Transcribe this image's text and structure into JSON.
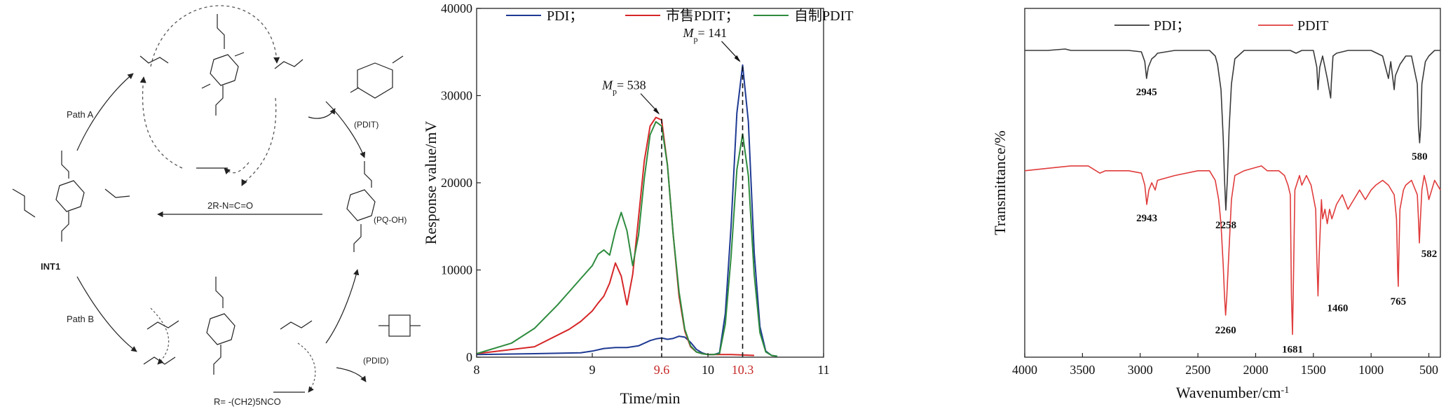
{
  "scheme": {
    "labels": {
      "path_a": "Path A",
      "path_b": "Path B",
      "reagent": "2R-N=C=O",
      "int1": "INT1",
      "pq_oh": "(PQ-OH)",
      "pdit": "(PDIT)",
      "pdid": "(PDID)",
      "r_def": "R= -(CH2)5NCO"
    }
  },
  "chart_data": [
    {
      "type": "line",
      "xlabel": "Time/min",
      "ylabel": "Response value/mV",
      "xlim": [
        8,
        11
      ],
      "ylim": [
        0,
        40000
      ],
      "x_ticks": [
        "8",
        "9",
        "9.6",
        "10",
        "10.3",
        "11"
      ],
      "highlight_ticks": [
        "9.6",
        "10.3"
      ],
      "y_ticks": [
        "0",
        "10000",
        "20000",
        "30000",
        "40000"
      ],
      "legend_placement": "top",
      "series": [
        {
          "name": "PDI；",
          "color": "#1f3a93",
          "x": [
            8.0,
            8.5,
            8.9,
            9.0,
            9.1,
            9.2,
            9.3,
            9.4,
            9.5,
            9.55,
            9.6,
            9.65,
            9.7,
            9.75,
            9.8,
            9.85,
            9.9,
            9.95,
            10.0,
            10.05,
            10.1,
            10.15,
            10.2,
            10.25,
            10.3,
            10.35,
            10.4,
            10.45,
            10.5,
            10.55,
            10.6
          ],
          "values": [
            300,
            400,
            500,
            700,
            1000,
            1100,
            1100,
            1300,
            1900,
            2100,
            2200,
            2050,
            2150,
            2400,
            2300,
            1700,
            900,
            500,
            300,
            300,
            500,
            5000,
            15000,
            28000,
            33500,
            27000,
            12000,
            3500,
            700,
            200,
            100
          ]
        },
        {
          "name": "市售PDIT；",
          "color": "#d62728",
          "x": [
            8.0,
            8.5,
            8.8,
            8.9,
            9.0,
            9.05,
            9.1,
            9.15,
            9.2,
            9.25,
            9.3,
            9.35,
            9.4,
            9.45,
            9.5,
            9.55,
            9.6,
            9.65,
            9.7,
            9.75,
            9.8,
            9.85,
            9.9,
            9.95,
            10.0,
            10.2,
            10.4
          ],
          "values": [
            400,
            1200,
            3200,
            4100,
            5300,
            6200,
            7000,
            8500,
            10800,
            9300,
            6000,
            9500,
            16000,
            22500,
            26500,
            27500,
            27200,
            22000,
            14000,
            7000,
            3000,
            1200,
            600,
            400,
            300,
            300,
            200
          ]
        },
        {
          "name": "自制PDIT",
          "color": "#2e8b3e",
          "x": [
            8.0,
            8.3,
            8.5,
            8.7,
            8.8,
            8.9,
            9.0,
            9.05,
            9.1,
            9.15,
            9.2,
            9.25,
            9.3,
            9.35,
            9.4,
            9.45,
            9.5,
            9.55,
            9.6,
            9.65,
            9.7,
            9.75,
            9.8,
            9.85,
            9.9,
            9.95,
            10.0,
            10.05,
            10.1,
            10.15,
            10.2,
            10.25,
            10.3,
            10.35,
            10.4,
            10.45,
            10.5,
            10.55,
            10.6
          ],
          "values": [
            400,
            1600,
            3300,
            6000,
            7500,
            9000,
            10500,
            11800,
            12300,
            11700,
            14500,
            16600,
            14500,
            10500,
            14000,
            20500,
            25500,
            27000,
            26500,
            22000,
            14000,
            7500,
            3200,
            1300,
            600,
            400,
            300,
            300,
            400,
            3800,
            11500,
            21500,
            25600,
            20800,
            9500,
            2800,
            600,
            200,
            100
          ]
        }
      ],
      "annotations": [
        {
          "text_main": "M",
          "text_sub": "p",
          "text_value": "= 538",
          "x": 9.6,
          "y": 27500
        },
        {
          "text_main": "M",
          "text_sub": "p",
          "text_value": "= 141",
          "x": 10.3,
          "y": 33500
        }
      ],
      "dashed_lines_at": [
        9.6,
        10.3
      ]
    },
    {
      "type": "line",
      "xlabel_main": "Wavenumber/cm",
      "xlabel_sup": "-1",
      "ylabel": "Transmittance/%",
      "xlim": [
        4000,
        400
      ],
      "x_ticks": [
        "4000",
        "3500",
        "3000",
        "2500",
        "2000",
        "1500",
        "1000",
        "500"
      ],
      "legend_placement": "top",
      "series": [
        {
          "name": "PDI；",
          "color": "#3a3a3a",
          "x": [
            4000,
            3800,
            3650,
            3600,
            3400,
            3100,
            2990,
            2960,
            2945,
            2930,
            2900,
            2870,
            2850,
            2700,
            2400,
            2350,
            2330,
            2300,
            2280,
            2270,
            2258,
            2245,
            2230,
            2210,
            2180,
            2100,
            1900,
            1700,
            1650,
            1600,
            1500,
            1470,
            1460,
            1445,
            1420,
            1380,
            1350,
            1345,
            1330,
            1300,
            1200,
            1100,
            1000,
            900,
            850,
            830,
            800,
            790,
            770,
            750,
            700,
            650,
            600,
            590,
            580,
            570,
            560,
            530,
            500,
            450,
            400
          ],
          "values": [
            72,
            72,
            72.5,
            72,
            72,
            72,
            71.5,
            68,
            62,
            66,
            69,
            70,
            71,
            72,
            72,
            70,
            67,
            58,
            40,
            26,
            15,
            26,
            44,
            60,
            69,
            72,
            72,
            72,
            71,
            72,
            72,
            66,
            58,
            66,
            70,
            62,
            55,
            60,
            70,
            71,
            72,
            72,
            72,
            70,
            62,
            68,
            58,
            63,
            65,
            67,
            70,
            70,
            60,
            45,
            39,
            45,
            60,
            68,
            70,
            72,
            72
          ]
        },
        {
          "name": "PDIT",
          "color": "#e03c3c",
          "x": [
            4000,
            3800,
            3600,
            3450,
            3350,
            3300,
            3100,
            2990,
            2960,
            2943,
            2925,
            2900,
            2870,
            2850,
            2700,
            2500,
            2400,
            2350,
            2320,
            2300,
            2280,
            2270,
            2260,
            2250,
            2230,
            2210,
            2180,
            2100,
            1950,
            1900,
            1800,
            1750,
            1720,
            1700,
            1690,
            1681,
            1675,
            1660,
            1620,
            1600,
            1560,
            1520,
            1480,
            1470,
            1460,
            1450,
            1430,
            1420,
            1400,
            1380,
            1360,
            1340,
            1300,
            1250,
            1200,
            1150,
            1100,
            1050,
            1000,
            960,
            900,
            850,
            800,
            780,
            770,
            765,
            760,
            750,
            720,
            700,
            650,
            600,
            590,
            582,
            575,
            560,
            540,
            520,
            500,
            450,
            400
          ],
          "values": [
            48,
            48.5,
            49,
            49,
            47.5,
            48,
            48,
            47.5,
            45,
            41,
            44,
            45.5,
            44,
            46,
            47,
            48,
            48,
            46,
            42,
            37,
            28,
            22,
            18,
            22,
            32,
            42,
            47,
            48,
            49,
            48,
            48,
            47,
            45,
            43,
            22,
            14,
            22,
            44,
            47,
            45,
            47,
            45,
            40,
            30,
            22,
            30,
            42,
            38,
            40,
            37,
            40,
            38,
            41,
            43,
            40,
            42,
            44,
            42,
            44,
            45,
            46,
            45,
            43,
            38,
            27,
            24,
            30,
            40,
            44,
            45,
            46,
            43,
            38,
            33,
            37,
            44,
            47,
            45,
            42,
            46,
            44
          ]
        }
      ],
      "annotations": [
        {
          "text": "2945",
          "x": 2945,
          "y": 62
        },
        {
          "text": "2258",
          "x": 2258,
          "y": 15
        },
        {
          "text": "580",
          "x": 580,
          "y": 39
        },
        {
          "text": "2943",
          "x": 2943,
          "y": 41
        },
        {
          "text": "2260",
          "x": 2260,
          "y": 18
        },
        {
          "text": "1681",
          "x": 1681,
          "y": 14
        },
        {
          "text": "1460",
          "x": 1460,
          "y": 22
        },
        {
          "text": "765",
          "x": 765,
          "y": 24
        },
        {
          "text": "582",
          "x": 582,
          "y": 33
        }
      ]
    }
  ]
}
